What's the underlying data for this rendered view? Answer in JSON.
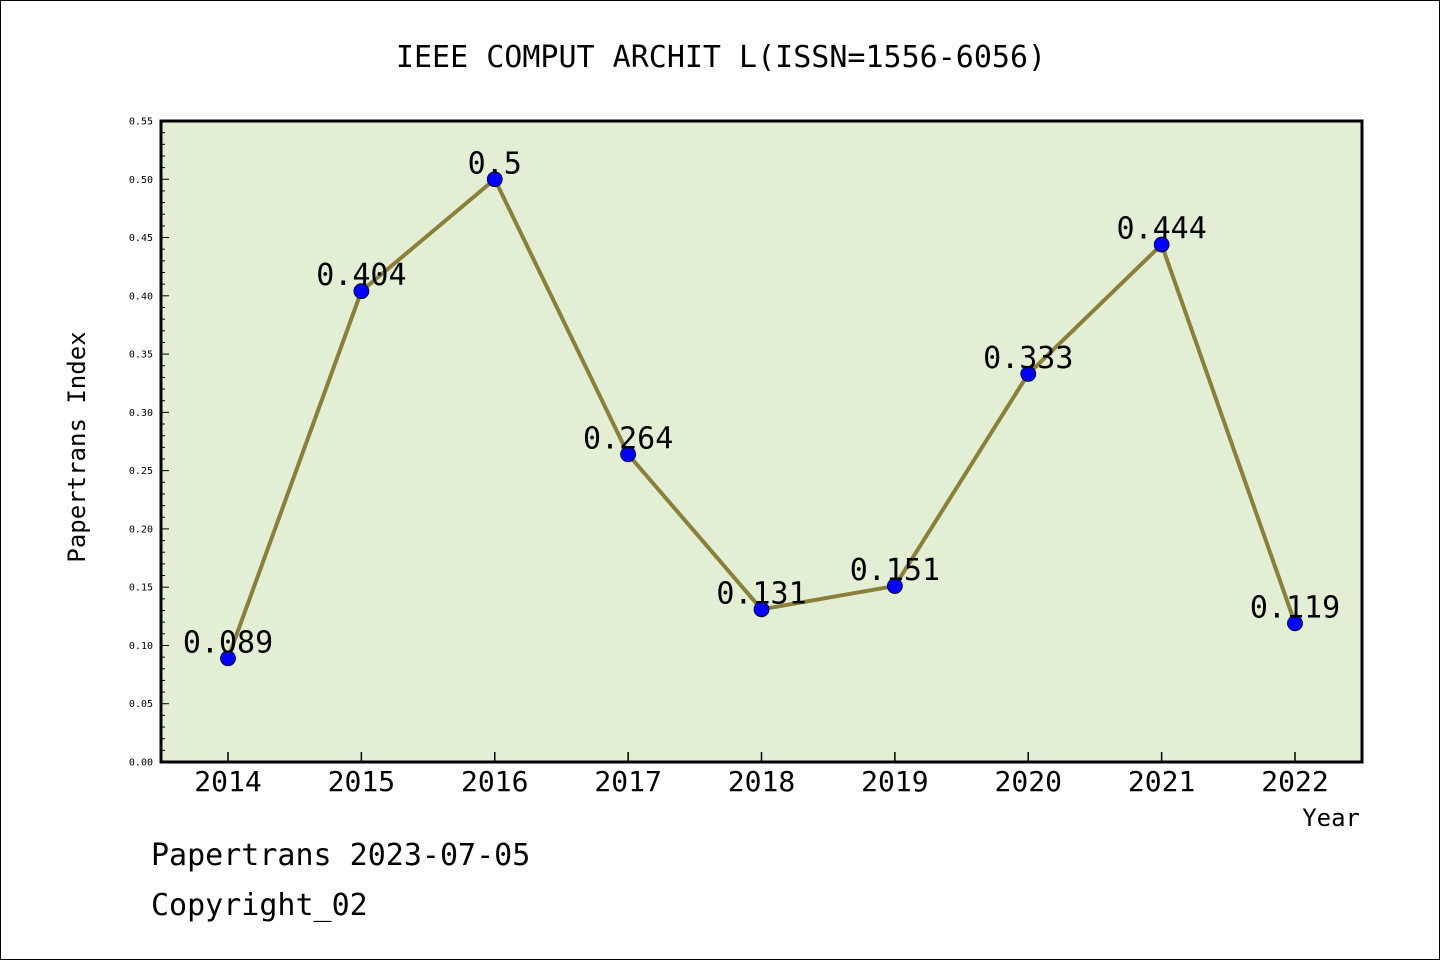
{
  "chart_data": {
    "type": "line",
    "title": "IEEE COMPUT ARCHIT L(ISSN=1556-6056)",
    "xlabel": "Year",
    "ylabel": "Papertrans Index",
    "categories": [
      "2014",
      "2015",
      "2016",
      "2017",
      "2018",
      "2019",
      "2020",
      "2021",
      "2022"
    ],
    "values": [
      0.089,
      0.404,
      0.5,
      0.264,
      0.131,
      0.151,
      0.333,
      0.444,
      0.119
    ],
    "data_labels": [
      "0.089",
      "0.404",
      "0.5",
      "0.264",
      "0.131",
      "0.151",
      "0.333",
      "0.444",
      "0.119"
    ],
    "ylim": [
      0,
      0.55
    ],
    "y_ticks": [
      "0.00",
      "0.05",
      "0.10",
      "0.15",
      "0.20",
      "0.25",
      "0.30",
      "0.35",
      "0.40",
      "0.45",
      "0.50",
      "0.55"
    ],
    "grid": false,
    "colors": {
      "plot_background": "#e2efd5",
      "line": "#8b8039",
      "marker": "#0000ff"
    }
  },
  "footer": {
    "line1": "Papertrans 2023-07-05",
    "line2": "Copyright_02"
  }
}
